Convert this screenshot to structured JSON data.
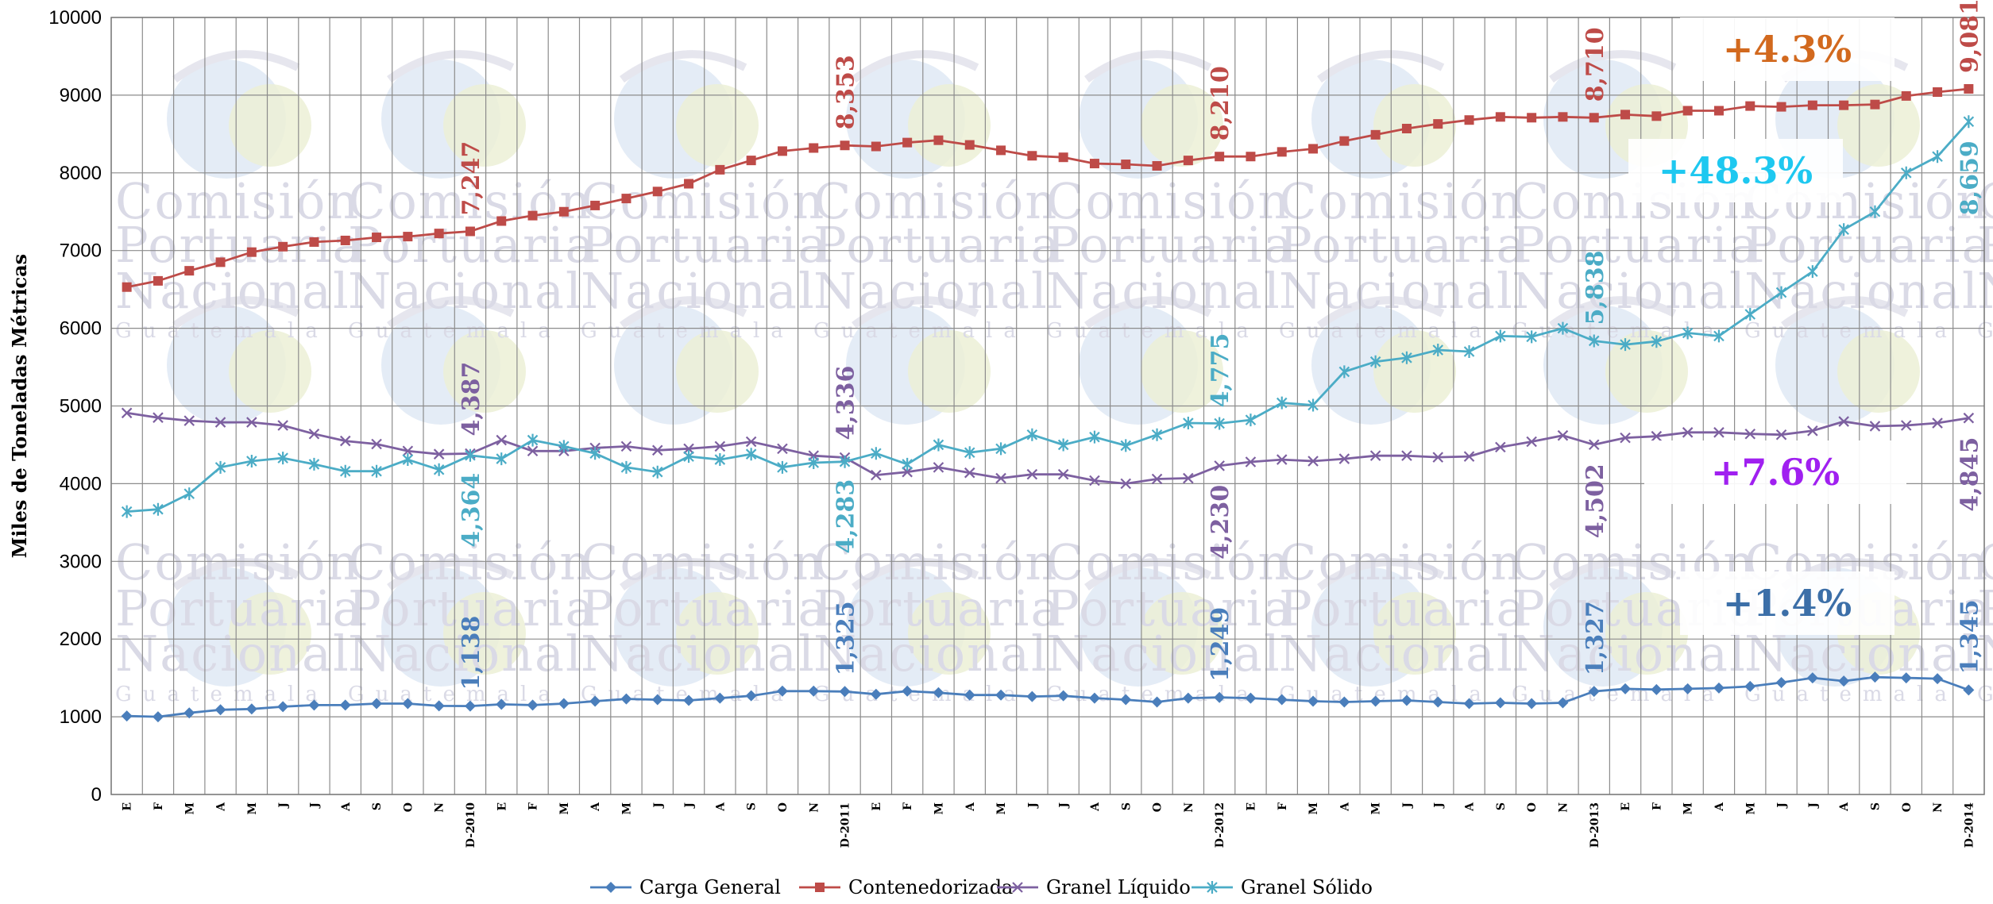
{
  "chart_data": {
    "type": "line",
    "ylabel": "Miles de Toneladas Métricas",
    "xlabel": "",
    "ylim": [
      0,
      10000
    ],
    "yticks": [
      "0",
      "1000",
      "2000",
      "3000",
      "4000",
      "5000",
      "6000",
      "7000",
      "8000",
      "9000",
      "10000"
    ],
    "grid": true,
    "legend_position": "bottom",
    "x": [
      "E",
      "F",
      "M",
      "A",
      "M",
      "J",
      "J",
      "A",
      "S",
      "O",
      "N",
      "D-2010",
      "E",
      "F",
      "M",
      "A",
      "M",
      "J",
      "J",
      "A",
      "S",
      "O",
      "N",
      "D-2011",
      "E",
      "F",
      "M",
      "A",
      "M",
      "J",
      "J",
      "A",
      "S",
      "O",
      "N",
      "D-2012",
      "E",
      "F",
      "M",
      "A",
      "M",
      "J",
      "J",
      "A",
      "S",
      "O",
      "N",
      "D-2013",
      "E",
      "F",
      "M",
      "A",
      "M",
      "J",
      "J",
      "A",
      "S",
      "O",
      "N",
      "D-2014"
    ],
    "series": [
      {
        "name": "Carga General",
        "color": "#4a7ebb",
        "marker": "diamond",
        "values": [
          1010,
          1000,
          1050,
          1090,
          1100,
          1130,
          1150,
          1150,
          1170,
          1170,
          1140,
          1138,
          1160,
          1150,
          1170,
          1200,
          1230,
          1220,
          1210,
          1240,
          1270,
          1330,
          1330,
          1325,
          1290,
          1330,
          1310,
          1280,
          1280,
          1260,
          1270,
          1240,
          1220,
          1190,
          1240,
          1249,
          1240,
          1220,
          1200,
          1190,
          1200,
          1210,
          1190,
          1170,
          1180,
          1170,
          1180,
          1327,
          1360,
          1350,
          1360,
          1370,
          1390,
          1440,
          1500,
          1460,
          1510,
          1500,
          1490,
          1345
        ]
      },
      {
        "name": "Contenedorizada",
        "color": "#be4b48",
        "marker": "square",
        "values": [
          6530,
          6610,
          6740,
          6850,
          6980,
          7050,
          7110,
          7130,
          7170,
          7180,
          7220,
          7247,
          7380,
          7450,
          7500,
          7580,
          7670,
          7760,
          7860,
          8040,
          8160,
          8280,
          8320,
          8353,
          8340,
          8390,
          8420,
          8360,
          8290,
          8220,
          8200,
          8120,
          8110,
          8090,
          8160,
          8210,
          8210,
          8270,
          8310,
          8410,
          8490,
          8570,
          8630,
          8680,
          8720,
          8710,
          8720,
          8710,
          8750,
          8730,
          8800,
          8800,
          8860,
          8850,
          8870,
          8870,
          8880,
          8990,
          9040,
          9081
        ]
      },
      {
        "name": "Granel Líquido",
        "color": "#7d60a0",
        "marker": "x",
        "values": [
          4910,
          4850,
          4810,
          4790,
          4790,
          4750,
          4640,
          4550,
          4510,
          4420,
          4380,
          4387,
          4560,
          4420,
          4420,
          4460,
          4480,
          4430,
          4450,
          4480,
          4540,
          4450,
          4360,
          4336,
          4110,
          4150,
          4210,
          4140,
          4070,
          4120,
          4120,
          4040,
          4000,
          4060,
          4070,
          4230,
          4280,
          4310,
          4290,
          4320,
          4360,
          4360,
          4340,
          4350,
          4470,
          4540,
          4620,
          4502,
          4590,
          4610,
          4660,
          4660,
          4640,
          4630,
          4680,
          4800,
          4740,
          4750,
          4780,
          4845
        ]
      },
      {
        "name": "Granel Sólido",
        "color": "#4bacc6",
        "marker": "star",
        "values": [
          3640,
          3670,
          3870,
          4210,
          4290,
          4330,
          4250,
          4160,
          4160,
          4310,
          4180,
          4364,
          4320,
          4560,
          4480,
          4390,
          4210,
          4150,
          4350,
          4310,
          4380,
          4210,
          4270,
          4283,
          4390,
          4250,
          4500,
          4400,
          4450,
          4630,
          4500,
          4600,
          4490,
          4630,
          4780,
          4775,
          4820,
          5040,
          5010,
          5440,
          5570,
          5620,
          5720,
          5700,
          5900,
          5890,
          6000,
          5838,
          5790,
          5830,
          5940,
          5900,
          6180,
          6460,
          6730,
          7270,
          7500,
          8000,
          8210,
          8659
        ]
      }
    ],
    "data_labels": [
      {
        "series": 0,
        "index": 11,
        "text": "1,138"
      },
      {
        "series": 0,
        "index": 23,
        "text": "1,325"
      },
      {
        "series": 0,
        "index": 35,
        "text": "1,249"
      },
      {
        "series": 0,
        "index": 47,
        "text": "1,327"
      },
      {
        "series": 0,
        "index": 59,
        "text": "1,345"
      },
      {
        "series": 1,
        "index": 11,
        "text": "7,247"
      },
      {
        "series": 1,
        "index": 23,
        "text": "8,353"
      },
      {
        "series": 1,
        "index": 35,
        "text": "8,210"
      },
      {
        "series": 1,
        "index": 47,
        "text": "8,710"
      },
      {
        "series": 1,
        "index": 59,
        "text": "9,081"
      },
      {
        "series": 2,
        "index": 11,
        "text": "4,387"
      },
      {
        "series": 2,
        "index": 23,
        "text": "4,336"
      },
      {
        "series": 2,
        "index": 35,
        "text": "4,230"
      },
      {
        "series": 2,
        "index": 47,
        "text": "4,502"
      },
      {
        "series": 2,
        "index": 59,
        "text": "4,845"
      },
      {
        "series": 3,
        "index": 11,
        "text": "4,364"
      },
      {
        "series": 3,
        "index": 23,
        "text": "4,283"
      },
      {
        "series": 3,
        "index": 35,
        "text": "4,775"
      },
      {
        "series": 3,
        "index": 47,
        "text": "5,838"
      },
      {
        "series": 3,
        "index": 59,
        "text": "8,659"
      }
    ],
    "annotations": [
      {
        "text": "+4.3%",
        "series": 1,
        "color": "#d2691e"
      },
      {
        "text": "+48.3%",
        "series": 3,
        "color": "#1ec8f0"
      },
      {
        "text": "+7.6%",
        "series": 2,
        "color": "#a020f0"
      },
      {
        "text": "+1.4%",
        "series": 0,
        "color": "#3c6fa8"
      }
    ],
    "watermark": [
      "Comisión",
      "Portuaria",
      "Nacional",
      "Guatemala"
    ]
  }
}
